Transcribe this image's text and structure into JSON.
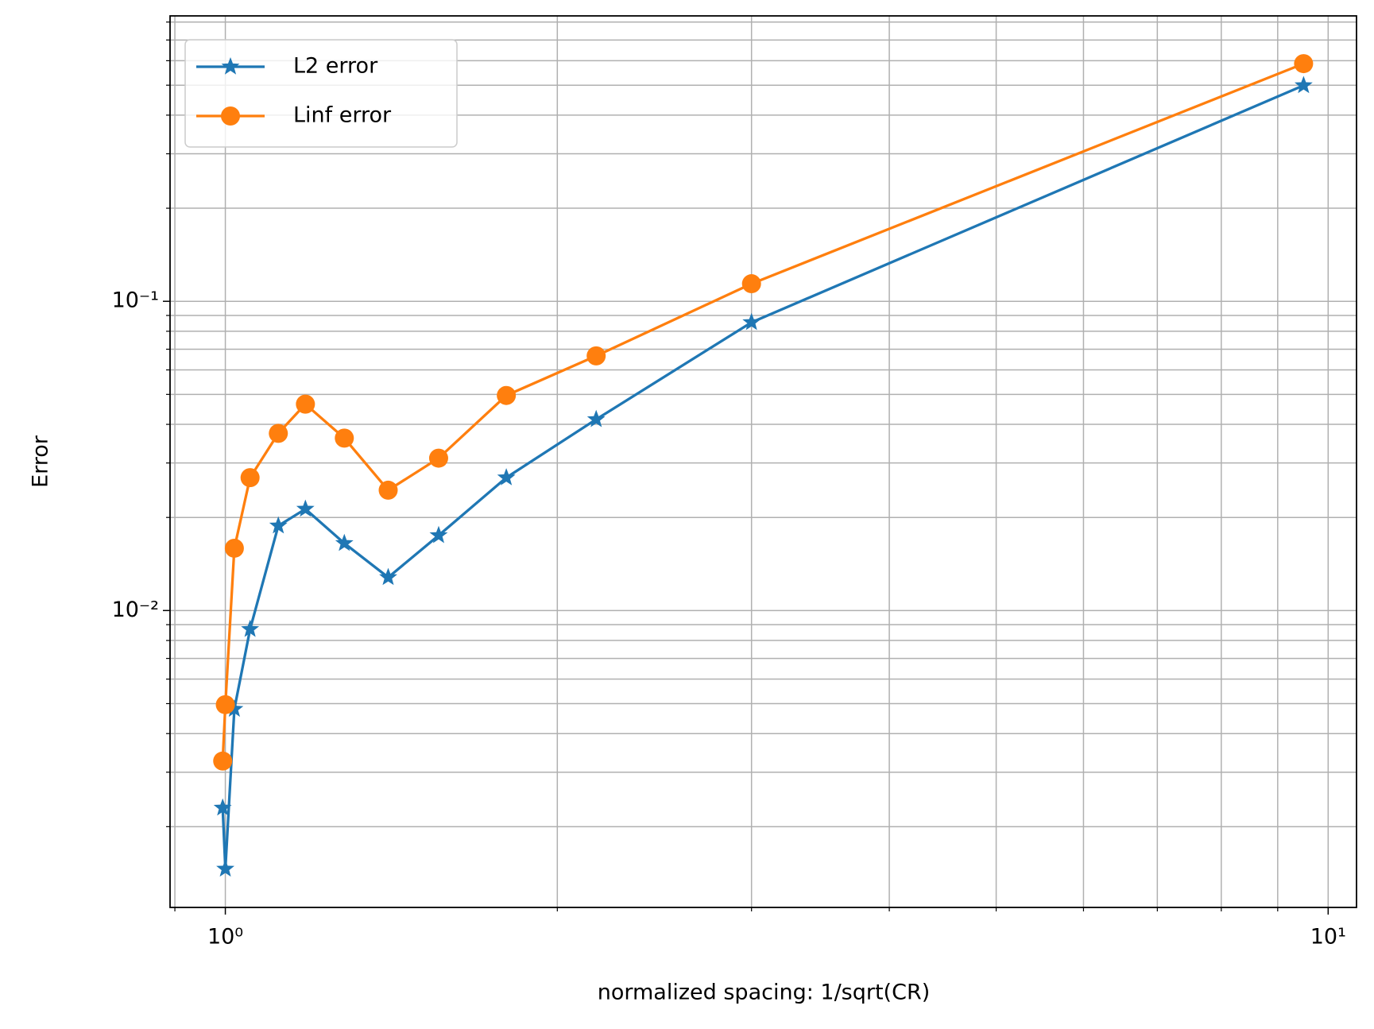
{
  "chart_data": {
    "type": "line",
    "xlabel": "normalized spacing: 1/sqrt(CR)",
    "ylabel": "Error",
    "x": [
      0.9945,
      1.0,
      1.019,
      1.053,
      1.117,
      1.182,
      1.282,
      1.405,
      1.561,
      1.798,
      2.169,
      3.0,
      9.5
    ],
    "series": [
      {
        "name": "L2 error",
        "color": "#1f77b4",
        "marker": "star",
        "values": [
          0.0023,
          0.00146,
          0.0048,
          0.0087,
          0.0188,
          0.0213,
          0.0165,
          0.0128,
          0.0175,
          0.0269,
          0.0415,
          0.0855,
          0.499
        ]
      },
      {
        "name": "Linf error",
        "color": "#ff7f0e",
        "marker": "circle",
        "values": [
          0.00326,
          0.00496,
          0.0159,
          0.0269,
          0.0374,
          0.0465,
          0.0361,
          0.0245,
          0.0311,
          0.0496,
          0.0666,
          0.114,
          0.587
        ]
      }
    ],
    "xscale": "log",
    "yscale": "log",
    "xlim": [
      0.891,
      10.61
    ],
    "ylim": [
      0.001096,
      0.8376
    ],
    "xticks": [
      {
        "value": 1,
        "label": "10⁰"
      },
      {
        "value": 10,
        "label": "10¹"
      }
    ],
    "yticks": [
      {
        "value": 0.01,
        "label": "10⁻²"
      },
      {
        "value": 0.1,
        "label": "10⁻¹"
      }
    ],
    "xminorticks": [
      0.9,
      2,
      3,
      4,
      5,
      6,
      7,
      8,
      9
    ],
    "yminorticks": [
      0.002,
      0.003,
      0.004,
      0.005,
      0.006,
      0.007,
      0.008,
      0.009,
      0.02,
      0.03,
      0.04,
      0.05,
      0.06,
      0.07,
      0.08,
      0.09,
      0.2,
      0.3,
      0.4,
      0.5,
      0.6,
      0.7,
      0.8
    ],
    "grid": true,
    "legend": "upper left"
  }
}
